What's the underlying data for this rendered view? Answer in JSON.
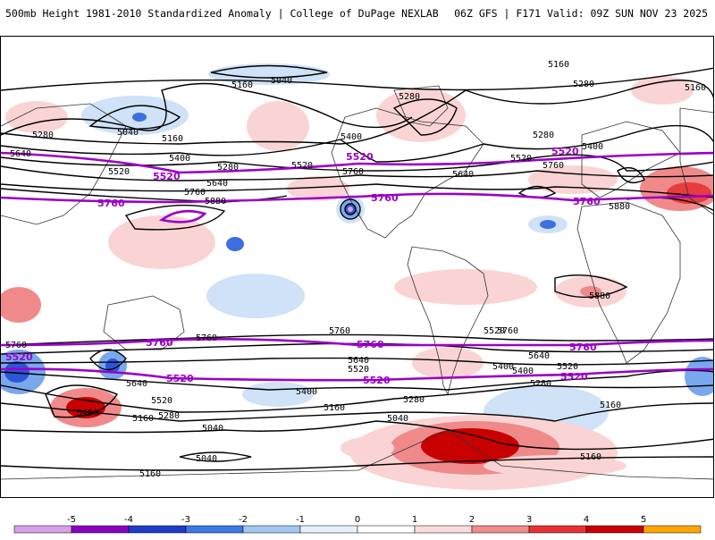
{
  "header": {
    "title": "500mb Height 1981-2010 Standardized Anomaly | College of DuPage NEXLAB",
    "run_info": "06Z GFS | F171 Valid: 09Z SUN NOV 23 2025"
  },
  "contour_labels": {
    "l5160a": "5160",
    "l5160b": "5160",
    "l5160c": "5160",
    "l5160d": "5160",
    "l5160e": "5160",
    "l5160f": "5160",
    "l5160g": "5160",
    "l5160h": "5160",
    "l5040a": "5040",
    "l5040b": "5040",
    "l5040c": "5040",
    "l5040d": "5040",
    "l5040e": "5040",
    "l5280a": "5280",
    "l5280b": "5280",
    "l5280c": "5280",
    "l5280d": "5280",
    "l5280e": "5280",
    "l5280f": "5280",
    "l5280g": "5280",
    "l5280h": "5280",
    "l5400a": "5400",
    "l5400b": "5400",
    "l5400c": "5400",
    "l5400d": "5400",
    "l5400e": "5400",
    "l5400f": "5400",
    "l5400g": "5400",
    "l5520a": "5520",
    "l5520b": "5520",
    "l5520c": "5520",
    "l5520d": "5520",
    "l5520e": "5520",
    "l5520f": "5520",
    "l5520g": "5520",
    "l5640a": "5640",
    "l5640b": "5640",
    "l5640c": "5640",
    "l5640d": "5640",
    "l5640e": "5640",
    "l5640f": "5640",
    "l5760a": "5760",
    "l5760b": "5760",
    "l5760c": "5760",
    "l5760d": "5760",
    "l5760e": "5760",
    "l5880a": "5880",
    "l5880b": "5880",
    "l5880c": "5880"
  },
  "bold_labels": {
    "b5520a": "5520",
    "b5520b": "5520",
    "b5520c": "5520",
    "b5520d": "5520",
    "b5520e": "5520",
    "b5520f": "5520",
    "b5520g": "5520",
    "b5520h": "5520",
    "b5760a": "5760",
    "b5760b": "5760",
    "b5760c": "5760",
    "b5760d": "5760",
    "b5760e": "5760",
    "b5760f": "5760",
    "b5760g": "5760"
  },
  "colorbar": {
    "ticks": [
      "-5",
      "-4",
      "-3",
      "-2",
      "-1",
      "0",
      "1",
      "2",
      "3",
      "4",
      "5"
    ],
    "colors": [
      "#d8a0e8",
      "#8a00c0",
      "#1e3cc8",
      "#3c78e6",
      "#a0c8f0",
      "#e6f0fa",
      "#ffffff",
      "#fadcdc",
      "#f08c8c",
      "#e63232",
      "#c80000",
      "#ffa500"
    ]
  },
  "colors": {
    "neg_light": "#cfe2f7",
    "neg_mid": "#7aa8ee",
    "neg_strong": "#2a56d8",
    "pos_light": "#fad4d4",
    "pos_mid": "#f08a8a",
    "pos_strong": "#d81818",
    "bold_contour": "#9a00c8",
    "contour": "#000000"
  }
}
